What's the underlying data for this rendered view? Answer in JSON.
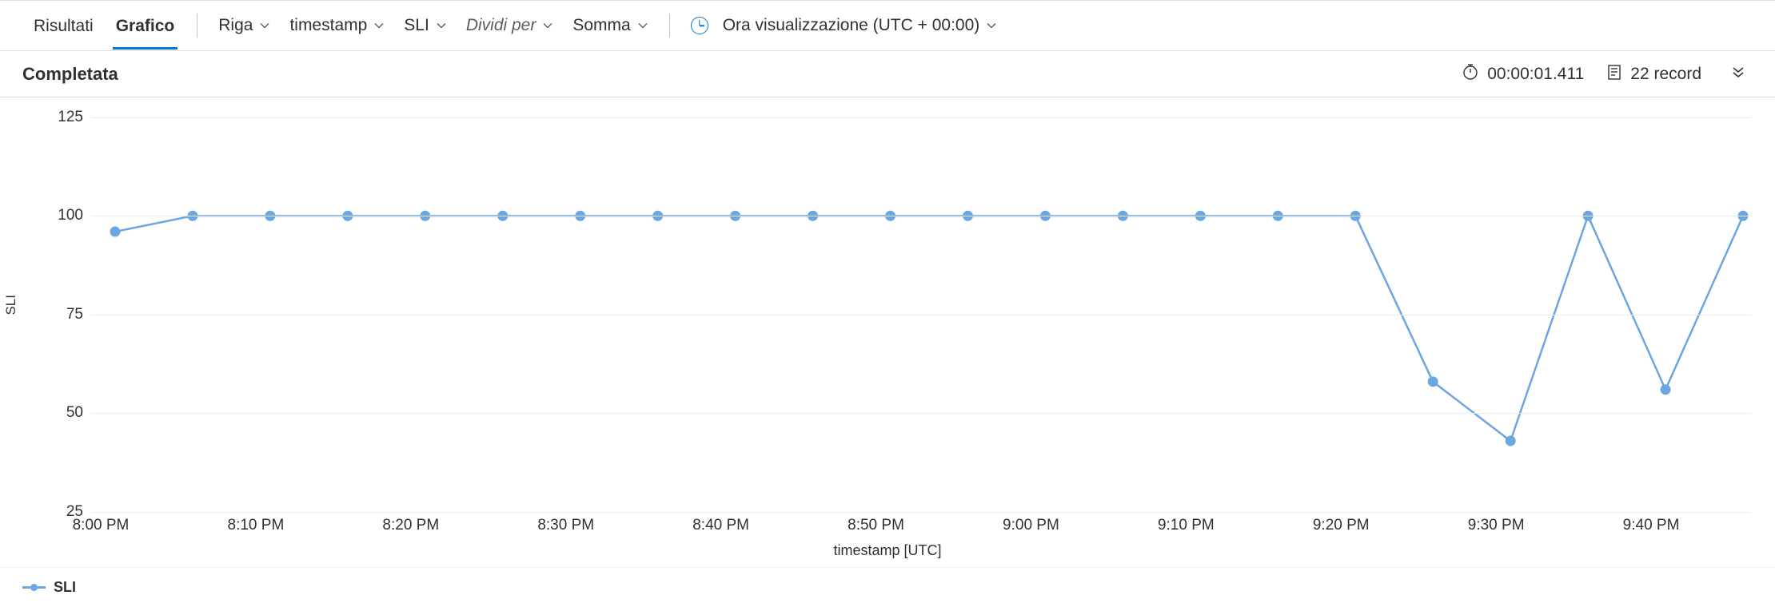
{
  "toolbar": {
    "tabs": {
      "results": "Risultati",
      "chart": "Grafico",
      "active": "chart"
    },
    "dropdowns": {
      "chart_type": "Riga",
      "x_field": "timestamp",
      "y_field": "SLI",
      "split_by_label": "Dividi per",
      "aggregation": "Somma"
    },
    "time_display": "Ora visualizzazione (UTC + 00:00)"
  },
  "status": {
    "title": "Completata",
    "duration": "00:00:01.411",
    "record_count": "22 record"
  },
  "chart": {
    "type": "line",
    "y_label": "SLI",
    "x_label": "timestamp [UTC]",
    "series_name": "SLI",
    "line_color": "#6ba6e0",
    "marker_color": "#6ba6e0",
    "marker_radius": 6.5,
    "line_width": 2.5,
    "background_color": "#ffffff",
    "grid_color": "#edebe9",
    "ylim": [
      25,
      130
    ],
    "yticks": [
      25,
      50,
      75,
      100,
      125
    ],
    "xticks": [
      "8:00 PM",
      "8:10 PM",
      "8:20 PM",
      "8:30 PM",
      "8:40 PM",
      "8:50 PM",
      "9:00 PM",
      "9:10 PM",
      "9:20 PM",
      "9:30 PM",
      "9:40 PM"
    ],
    "x_domain_count": 22,
    "xtick_positions": [
      0,
      2,
      4,
      6,
      8,
      10,
      12,
      14,
      16,
      18,
      20
    ],
    "values": [
      96,
      100,
      100,
      100,
      100,
      100,
      100,
      100,
      100,
      100,
      100,
      100,
      100,
      100,
      100,
      100,
      100,
      58,
      43,
      100,
      56,
      100
    ],
    "tick_fontsize": 19,
    "label_fontsize": 18
  },
  "legend": {
    "items": [
      {
        "label": "SLI",
        "color": "#6ba6e0"
      }
    ]
  }
}
